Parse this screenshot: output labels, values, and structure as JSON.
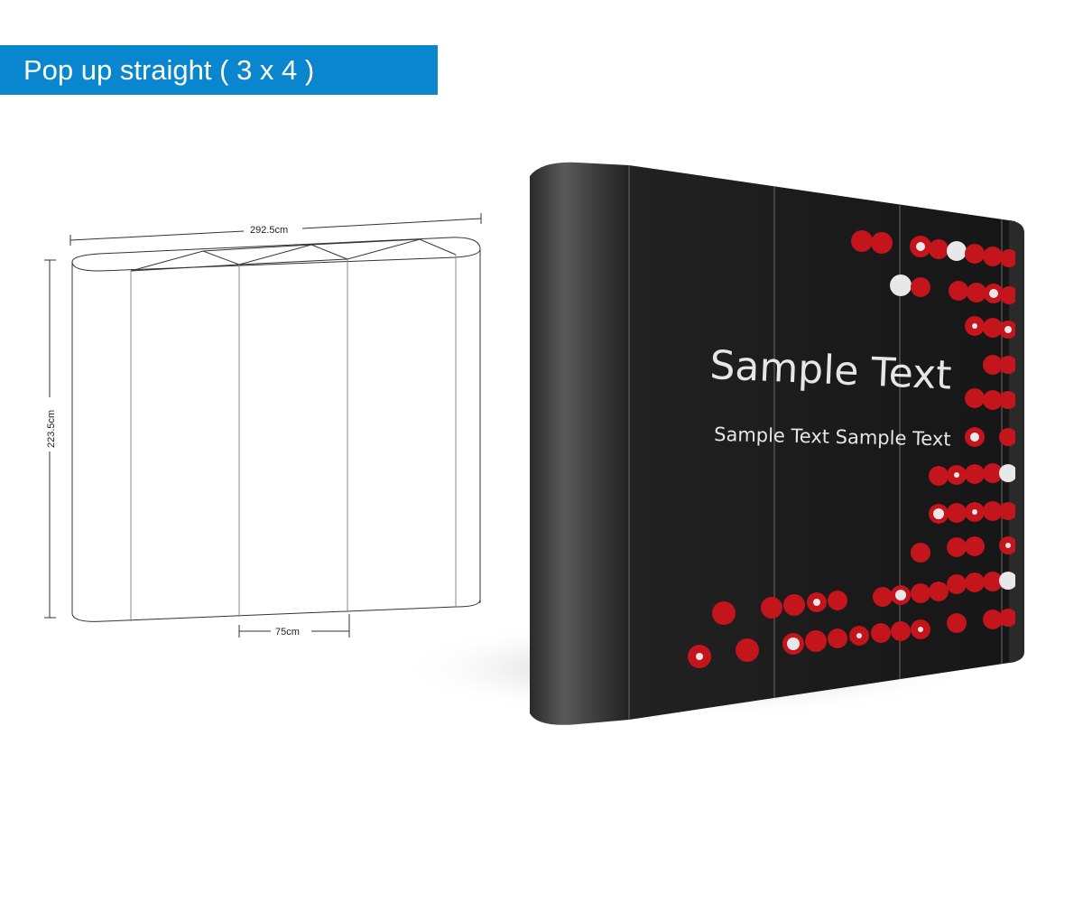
{
  "header": {
    "title": "Pop up straight ( 3 x 4 )"
  },
  "diagram": {
    "width_label": "292.5cm",
    "height_label": "223.5cm",
    "panel_label": "75cm"
  },
  "banner": {
    "headline": "Sample Text",
    "subline": "Sample Text Sample Text"
  },
  "colors": {
    "title_bar": "#0a86cf",
    "banner_bg": "#1b1b1b",
    "dot_red": "#c4141c",
    "dot_white": "#e8e8e8"
  }
}
